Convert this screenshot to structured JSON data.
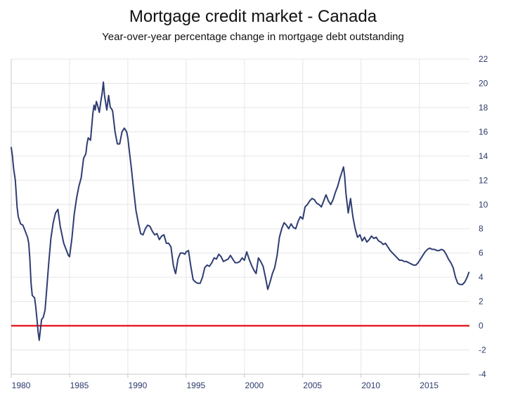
{
  "chart_data": {
    "type": "line",
    "title": "Mortgage credit market - Canada",
    "subtitle": "Year-over-year percentage change in mortgage debt outstanding",
    "xlabel": "",
    "ylabel": "",
    "xlim": [
      1980,
      2019.3
    ],
    "ylim": [
      -4,
      22
    ],
    "x_ticks": [
      1980,
      1985,
      1990,
      1995,
      2000,
      2005,
      2010,
      2015
    ],
    "y_ticks": [
      -4,
      -2,
      0,
      2,
      4,
      6,
      8,
      10,
      12,
      14,
      16,
      18,
      20,
      22
    ],
    "grid": true,
    "y_axis_side": "right",
    "legend": "none",
    "colors": {
      "series": "#2e3d73",
      "reference": "#e8202a",
      "grid": "#e6e6e6",
      "tick_text": "#2c3a6b"
    },
    "reference_line": {
      "y": 0
    },
    "series": [
      {
        "x": [
          1980.0,
          1980.1,
          1980.2,
          1980.35,
          1980.5,
          1980.6,
          1980.8,
          1981.0,
          1981.2,
          1981.4,
          1981.5,
          1981.6,
          1981.7,
          1981.8,
          1981.9,
          1982.0,
          1982.1,
          1982.2,
          1982.3,
          1982.4,
          1982.6,
          1982.75,
          1982.9,
          1983.0,
          1983.2,
          1983.4,
          1983.6,
          1983.8,
          1984.0,
          1984.2,
          1984.5,
          1984.7,
          1984.9,
          1985.0,
          1985.2,
          1985.4,
          1985.6,
          1985.8,
          1986.0,
          1986.2,
          1986.4,
          1986.5,
          1986.6,
          1986.8,
          1987.0,
          1987.1,
          1987.2,
          1987.3,
          1987.4,
          1987.55,
          1987.7,
          1987.8,
          1987.9,
          1988.0,
          1988.2,
          1988.35,
          1988.5,
          1988.6,
          1988.7,
          1988.9,
          1989.1,
          1989.3,
          1989.5,
          1989.7,
          1989.9,
          1990.0,
          1990.3,
          1990.5,
          1990.7,
          1990.9,
          1991.1,
          1991.3,
          1991.5,
          1991.7,
          1991.9,
          1992.1,
          1992.3,
          1992.5,
          1992.7,
          1992.9,
          1993.1,
          1993.3,
          1993.5,
          1993.7,
          1993.9,
          1994.0,
          1994.1,
          1994.3,
          1994.5,
          1994.7,
          1994.9,
          1995.0,
          1995.2,
          1995.4,
          1995.6,
          1995.8,
          1996.0,
          1996.2,
          1996.4,
          1996.6,
          1996.8,
          1997.0,
          1997.2,
          1997.4,
          1997.6,
          1997.8,
          1998.0,
          1998.2,
          1998.4,
          1998.6,
          1998.8,
          1999.0,
          1999.2,
          1999.4,
          1999.6,
          1999.8,
          2000.0,
          2000.2,
          2000.4,
          2000.6,
          2000.8,
          2001.0,
          2001.2,
          2001.4,
          2001.6,
          2001.8,
          2002.0,
          2002.2,
          2002.4,
          2002.6,
          2002.8,
          2003.0,
          2003.2,
          2003.4,
          2003.6,
          2003.8,
          2004.0,
          2004.2,
          2004.4,
          2004.6,
          2004.8,
          2005.0,
          2005.2,
          2005.4,
          2005.6,
          2005.8,
          2006.0,
          2006.2,
          2006.4,
          2006.6,
          2006.8,
          2007.0,
          2007.2,
          2007.4,
          2007.6,
          2007.8,
          2008.0,
          2008.2,
          2008.4,
          2008.5,
          2008.6,
          2008.7,
          2008.9,
          2009.1,
          2009.3,
          2009.5,
          2009.7,
          2009.9,
          2010.1,
          2010.3,
          2010.5,
          2010.7,
          2010.9,
          2011.1,
          2011.3,
          2011.5,
          2011.7,
          2011.9,
          2012.1,
          2012.3,
          2012.5,
          2012.7,
          2012.9,
          2013.1,
          2013.3,
          2013.5,
          2013.7,
          2013.9,
          2014.1,
          2014.3,
          2014.5,
          2014.7,
          2014.9,
          2015.1,
          2015.3,
          2015.5,
          2015.7,
          2015.9,
          2016.1,
          2016.3,
          2016.5,
          2016.7,
          2016.9,
          2017.1,
          2017.3,
          2017.5,
          2017.7,
          2017.9,
          2018.1,
          2018.3,
          2018.5,
          2018.7,
          2018.9,
          2019.1,
          2019.25
        ],
        "values": [
          14.7,
          14.0,
          13.0,
          12.0,
          9.8,
          9.0,
          8.4,
          8.3,
          7.8,
          7.3,
          6.8,
          5.5,
          3.5,
          2.5,
          2.4,
          2.3,
          1.6,
          0.6,
          -0.5,
          -1.2,
          0.5,
          0.7,
          1.3,
          2.5,
          5.0,
          7.2,
          8.5,
          9.3,
          9.6,
          8.2,
          6.8,
          6.3,
          5.8,
          5.7,
          7.2,
          9.2,
          10.5,
          11.5,
          12.2,
          13.8,
          14.2,
          15.0,
          15.5,
          15.3,
          17.5,
          18.2,
          17.8,
          18.5,
          18.2,
          17.6,
          18.6,
          19.2,
          20.1,
          19.0,
          17.8,
          19.0,
          18.0,
          17.9,
          17.7,
          16.0,
          15.0,
          15.0,
          16.0,
          16.3,
          16.0,
          15.5,
          13.0,
          11.2,
          9.5,
          8.5,
          7.6,
          7.5,
          8.0,
          8.3,
          8.2,
          7.8,
          7.5,
          7.6,
          7.1,
          7.4,
          7.5,
          6.8,
          6.8,
          6.5,
          5.0,
          4.6,
          4.3,
          5.5,
          6.0,
          6.0,
          5.9,
          6.1,
          6.2,
          4.9,
          3.8,
          3.6,
          3.5,
          3.5,
          4.0,
          4.8,
          5.0,
          4.9,
          5.2,
          5.6,
          5.5,
          5.9,
          5.7,
          5.3,
          5.4,
          5.5,
          5.8,
          5.5,
          5.2,
          5.2,
          5.3,
          5.6,
          5.4,
          6.1,
          5.5,
          5.0,
          4.6,
          4.3,
          5.6,
          5.3,
          4.9,
          4.0,
          3.0,
          3.6,
          4.3,
          4.8,
          5.8,
          7.3,
          8.0,
          8.5,
          8.3,
          8.0,
          8.4,
          8.1,
          8.0,
          8.6,
          9.0,
          8.8,
          9.8,
          10.0,
          10.3,
          10.5,
          10.4,
          10.1,
          10.0,
          9.8,
          10.3,
          10.8,
          10.3,
          10.0,
          10.4,
          11.0,
          11.5,
          12.2,
          12.8,
          13.1,
          12.3,
          11.0,
          9.3,
          10.5,
          9.0,
          8.0,
          7.3,
          7.5,
          7.0,
          7.3,
          6.9,
          7.1,
          7.4,
          7.2,
          7.3,
          7.0,
          6.9,
          6.7,
          6.8,
          6.5,
          6.2,
          6.0,
          5.8,
          5.6,
          5.4,
          5.4,
          5.3,
          5.3,
          5.2,
          5.1,
          5.0,
          5.0,
          5.2,
          5.5,
          5.8,
          6.1,
          6.3,
          6.4,
          6.3,
          6.3,
          6.2,
          6.2,
          6.3,
          6.2,
          5.9,
          5.5,
          5.2,
          4.8,
          4.0,
          3.5,
          3.4,
          3.4,
          3.6,
          4.0,
          4.4
        ]
      }
    ]
  }
}
